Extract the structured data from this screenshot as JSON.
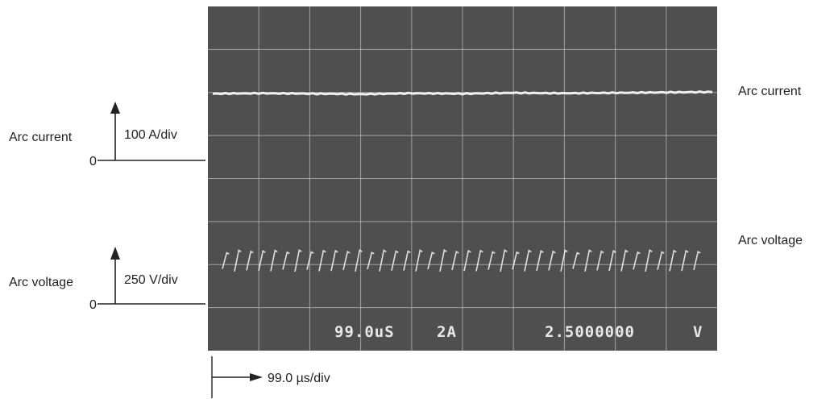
{
  "chart_data": {
    "type": "line",
    "title": "",
    "xlabel": "",
    "ylabel": "",
    "grid": true,
    "divisions": {
      "x": 10,
      "y": 8
    },
    "time_scale": "99.0 µs/div",
    "series": [
      {
        "name": "Arc current",
        "scale": "100 A/div",
        "zero_label": "0",
        "y_divs_above_zero": 1.55,
        "description_values_divs": [
          1.55,
          1.56,
          1.55,
          1.54,
          1.56,
          1.55,
          1.57,
          1.56,
          1.57,
          1.58,
          1.59
        ]
      },
      {
        "name": "Arc voltage",
        "scale": "250 V/div",
        "zero_label": "0",
        "y_divs_above_zero": 1.0,
        "ripple_cycles": 40,
        "ripple_amplitude_divs": 0.25
      }
    ],
    "readout": {
      "timebase": "99.0uS",
      "channel": "2A",
      "value": "2.5000000",
      "unit": "V"
    },
    "screen_color": "#4f4f4f",
    "grid_color": "#bdbdbd",
    "trace_color": "#f0f0f0"
  }
}
